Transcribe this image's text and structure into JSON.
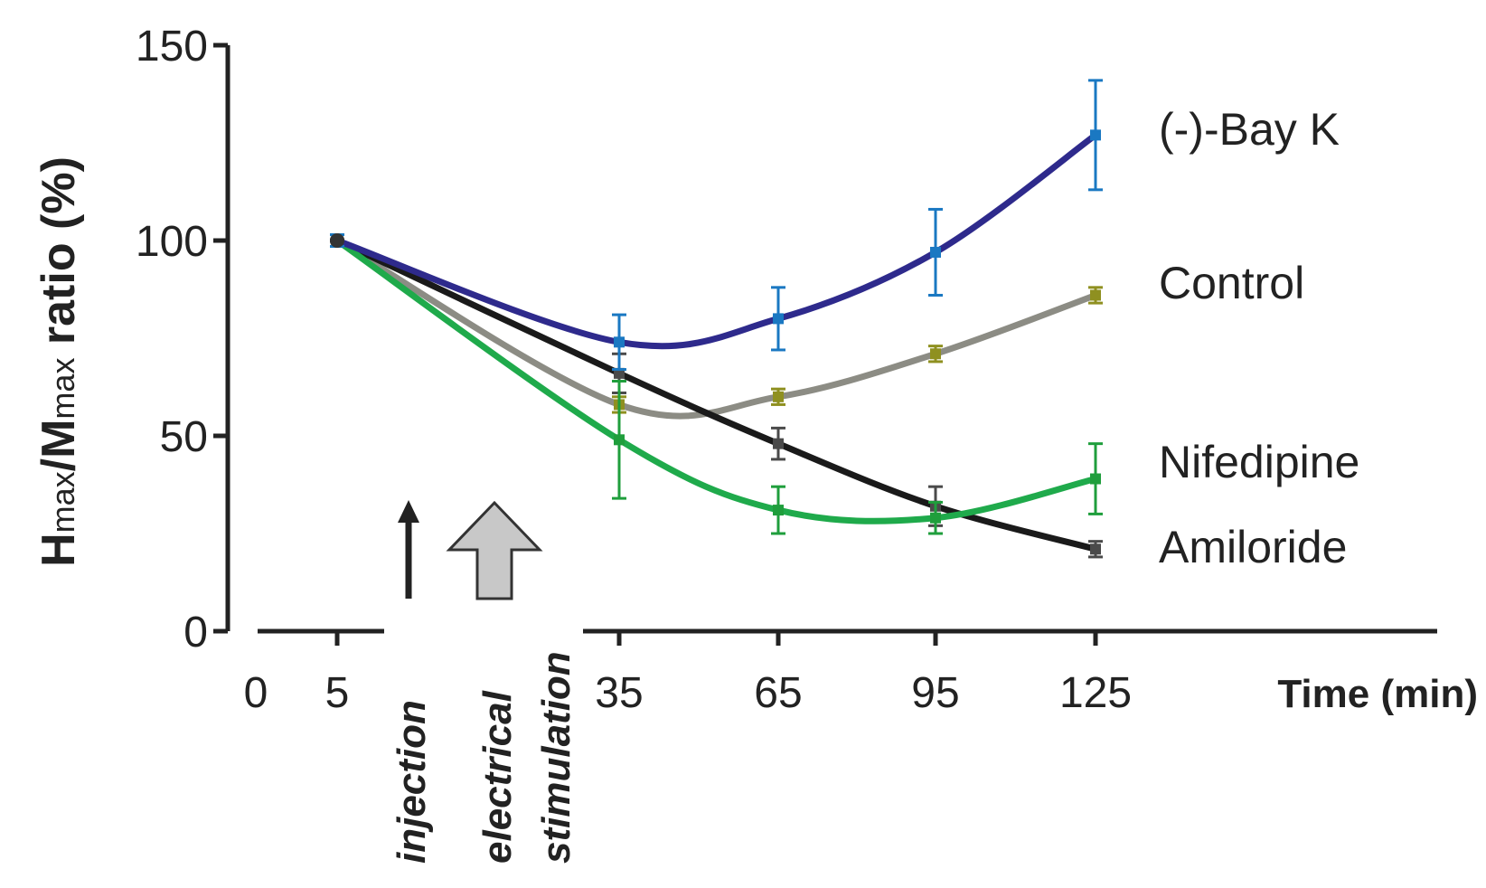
{
  "chart_data": {
    "type": "line",
    "title": "",
    "ylabel_main": "H",
    "ylabel_sub1": "max",
    "ylabel_mid": "/M",
    "ylabel_sub2": "max",
    "ylabel_tail": " ratio (%)",
    "xlabel": "Time (min)",
    "ylim": [
      0,
      150
    ],
    "yticks": [
      0,
      50,
      100,
      150
    ],
    "xlim": [
      0,
      165
    ],
    "xticks": [
      0,
      5,
      35,
      65,
      95,
      125
    ],
    "x": [
      5,
      35,
      65,
      95,
      125
    ],
    "series": [
      {
        "name": "(-)-Bay K",
        "color": "#2e2a8c",
        "marker_color": "#1a78c2",
        "values": [
          100,
          74,
          80,
          97,
          127
        ],
        "errors": [
          1.5,
          7,
          8,
          11,
          14
        ],
        "curve": "smooth"
      },
      {
        "name": "Control",
        "color": "#8c8c84",
        "marker_color": "#8f9020",
        "values": [
          100,
          58,
          60,
          71,
          86
        ],
        "errors": [
          1.5,
          2,
          2,
          2,
          2
        ],
        "curve": "smooth"
      },
      {
        "name": "Nifedipine",
        "color": "#1faa4b",
        "marker_color": "#1f9e3c",
        "values": [
          100,
          49,
          31,
          29,
          39
        ],
        "errors": [
          1.5,
          15,
          6,
          4,
          9
        ],
        "curve": "smooth"
      },
      {
        "name": "Amiloride",
        "color": "#1a1a1a",
        "marker_color": "#4a4a4a",
        "values": [
          100,
          66,
          48,
          32,
          21
        ],
        "errors": [
          1.5,
          5,
          4,
          5,
          2
        ],
        "curve": "smooth"
      }
    ],
    "annotations": [
      {
        "text": "injection",
        "at_time": 17
      },
      {
        "text": "electrical",
        "at_time": 26
      },
      {
        "text": "stimulation",
        "at_time": 26
      }
    ]
  }
}
